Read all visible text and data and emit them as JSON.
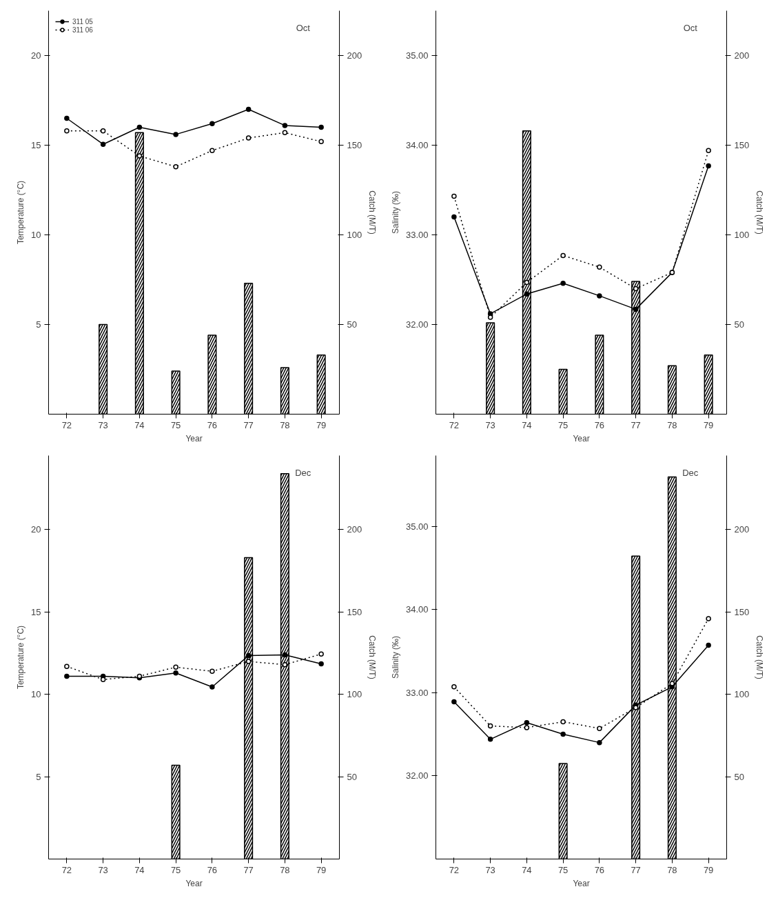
{
  "chart_data": [
    {
      "type": "line",
      "xlabel": "Year",
      "ylabel": "Temperature (°C)",
      "y2label": "Catch (M/T)",
      "categories": [
        "72",
        "73",
        "74",
        "75",
        "76",
        "77",
        "78",
        "79"
      ],
      "ylim": [
        0,
        22.5
      ],
      "yticks": [
        5,
        10,
        15,
        20
      ],
      "y2lim": [
        0,
        225
      ],
      "y2ticks": [
        50,
        100,
        150,
        200
      ],
      "legend": "top left",
      "marker": "circle",
      "annotations": [
        "Oct"
      ],
      "series": [
        {
          "type": "bar",
          "axis": "y2",
          "color": "#000000",
          "values": [
            null,
            50,
            157,
            24,
            44,
            73,
            26,
            33
          ]
        },
        {
          "name": "311 05",
          "color": "#000000",
          "line_style": "solid",
          "values": [
            16.5,
            15.05,
            16.0,
            15.6,
            16.2,
            17.0,
            16.1,
            16.0
          ]
        },
        {
          "name": "311 06",
          "color": "#000000",
          "line_style": "dotted",
          "values": [
            15.8,
            15.8,
            14.4,
            13.8,
            14.7,
            15.4,
            15.7,
            15.2
          ]
        }
      ]
    },
    {
      "type": "line",
      "xlabel": "Year",
      "ylabel": "Salinity (‰)",
      "y2label": "Catch (M/T)",
      "categories": [
        "72",
        "73",
        "74",
        "75",
        "76",
        "77",
        "78",
        "79"
      ],
      "ylim": [
        31.0,
        35.5
      ],
      "yticks": [
        {
          "value": 32,
          "label": "32.00"
        },
        {
          "value": 33,
          "label": "33.00"
        },
        {
          "value": 34,
          "label": "34.00"
        },
        {
          "value": 35,
          "label": "35.00"
        }
      ],
      "y2lim": [
        0,
        225
      ],
      "y2ticks": [
        50,
        100,
        150,
        200
      ],
      "marker": "circle",
      "annotations": [
        "Oct"
      ],
      "series": [
        {
          "type": "bar",
          "axis": "y2",
          "color": "#000000",
          "values": [
            null,
            51,
            158,
            25,
            44,
            74,
            27,
            33
          ]
        },
        {
          "color": "#000000",
          "line_style": "solid",
          "values": [
            33.2,
            32.12,
            32.34,
            32.46,
            32.32,
            32.17,
            32.58,
            33.77
          ]
        },
        {
          "color": "#000000",
          "line_style": "dotted",
          "values": [
            33.43,
            32.08,
            32.47,
            32.77,
            32.64,
            32.4,
            32.58,
            33.94
          ]
        }
      ]
    },
    {
      "type": "line",
      "xlabel": "Year",
      "ylabel": "Temperature (°C)",
      "y2label": "Catch (M/T)",
      "categories": [
        "72",
        "73",
        "74",
        "75",
        "76",
        "77",
        "78",
        "79"
      ],
      "ylim": [
        0,
        24.5
      ],
      "yticks": [
        5,
        10,
        15,
        20
      ],
      "y2lim": [
        0,
        245
      ],
      "y2ticks": [
        50,
        100,
        150,
        200
      ],
      "marker": "circle",
      "annotations": [
        "Dec"
      ],
      "series": [
        {
          "type": "bar",
          "axis": "y2",
          "color": "#000000",
          "values": [
            null,
            null,
            null,
            57,
            null,
            183,
            234,
            null
          ]
        },
        {
          "color": "#000000",
          "line_style": "solid",
          "values": [
            11.1,
            11.1,
            11.0,
            11.3,
            10.45,
            12.35,
            12.4,
            11.85
          ]
        },
        {
          "color": "#000000",
          "line_style": "dotted",
          "values": [
            11.7,
            10.9,
            11.1,
            11.65,
            11.4,
            12.0,
            11.8,
            12.45
          ]
        }
      ]
    },
    {
      "type": "line",
      "xlabel": "Year",
      "ylabel": "Salinity (‰)",
      "y2label": "Catch (M/T)",
      "categories": [
        "72",
        "73",
        "74",
        "75",
        "76",
        "77",
        "78",
        "79"
      ],
      "ylim": [
        31.0,
        35.85
      ],
      "yticks": [
        {
          "value": 32,
          "label": "32.00"
        },
        {
          "value": 33,
          "label": "33.00"
        },
        {
          "value": 34,
          "label": "34.00"
        },
        {
          "value": 35,
          "label": "35.00"
        }
      ],
      "y2lim": [
        0,
        245
      ],
      "y2ticks": [
        50,
        100,
        150,
        200
      ],
      "marker": "circle",
      "annotations": [
        "Dec"
      ],
      "series": [
        {
          "type": "bar",
          "axis": "y2",
          "color": "#000000",
          "values": [
            null,
            null,
            null,
            58,
            null,
            184,
            232,
            null
          ]
        },
        {
          "color": "#000000",
          "line_style": "solid",
          "values": [
            32.89,
            32.44,
            32.64,
            32.5,
            32.4,
            32.85,
            33.07,
            33.57
          ]
        },
        {
          "color": "#000000",
          "line_style": "dotted",
          "values": [
            33.07,
            32.6,
            32.58,
            32.65,
            32.57,
            32.82,
            33.11,
            33.89
          ]
        }
      ]
    }
  ]
}
